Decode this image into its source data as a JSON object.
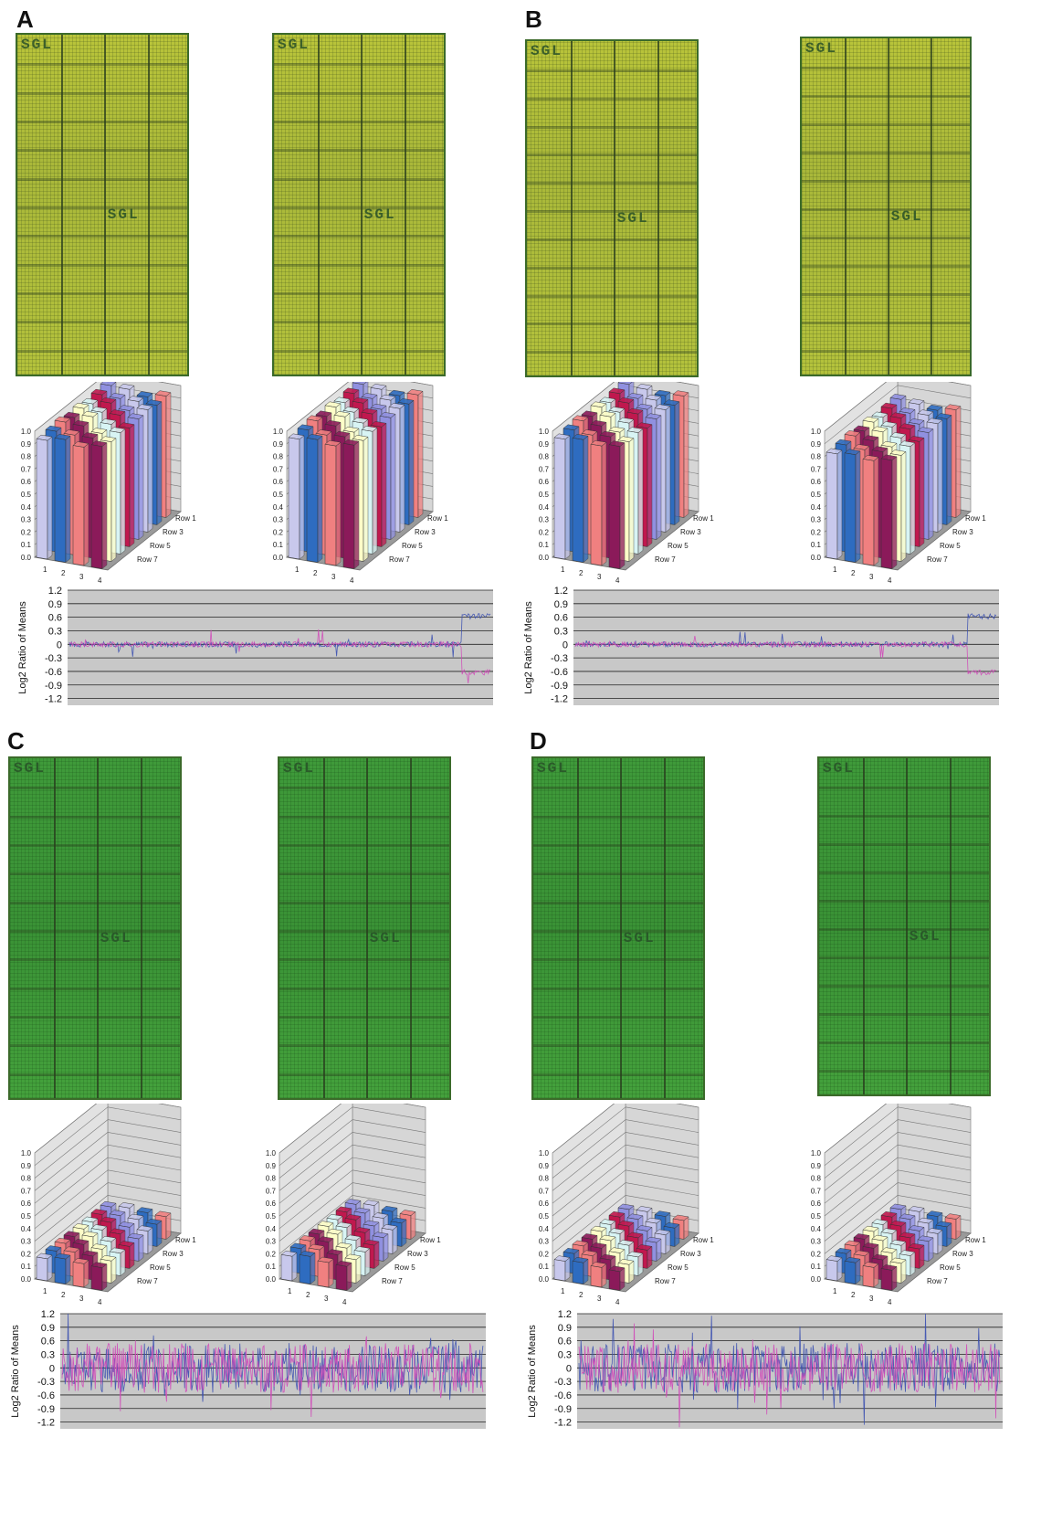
{
  "panels": [
    {
      "letter": "A",
      "theme": "yellow",
      "height": "high"
    },
    {
      "letter": "B",
      "theme": "yellow",
      "height": "high"
    },
    {
      "letter": "C",
      "theme": "green",
      "height": "low"
    },
    {
      "letter": "D",
      "theme": "green",
      "height": "low"
    }
  ],
  "array_logo": "SGL",
  "chart_data": [
    {
      "type": "bar",
      "panel": "A-left",
      "categories": [
        "1",
        "2",
        "3",
        "4"
      ],
      "rows": [
        "Row 1",
        "Row 3",
        "Row 5",
        "Row 7"
      ],
      "ylim": [
        0,
        1.0
      ],
      "yticks": [
        "1.0",
        "0.9",
        "0.8",
        "0.7",
        "0.6",
        "0.5",
        "0.4",
        "0.3",
        "0.2",
        "0.1",
        "0.0"
      ],
      "values": [
        0.97,
        0.98,
        0.96,
        0.97
      ]
    },
    {
      "type": "bar",
      "panel": "A-right",
      "categories": [
        "1",
        "2",
        "3",
        "4"
      ],
      "rows": [
        "Row 1",
        "Row 3",
        "Row 5",
        "Row 7"
      ],
      "ylim": [
        0,
        1.0
      ],
      "yticks": [
        "1.0",
        "0.9",
        "0.8",
        "0.7",
        "0.6",
        "0.5",
        "0.4",
        "0.3",
        "0.2",
        "0.1",
        "0.0"
      ],
      "values": [
        0.98,
        0.98,
        0.97,
        0.98
      ]
    },
    {
      "type": "bar",
      "panel": "B-left",
      "categories": [
        "1",
        "2",
        "3",
        "4"
      ],
      "rows": [
        "Row 1",
        "Row 3",
        "Row 5",
        "Row 7"
      ],
      "ylim": [
        0,
        1.0
      ],
      "yticks": [
        "1.0",
        "0.9",
        "0.8",
        "0.7",
        "0.6",
        "0.5",
        "0.4",
        "0.3",
        "0.2",
        "0.1",
        "0.0"
      ],
      "values": [
        0.98,
        0.98,
        0.97,
        0.97
      ]
    },
    {
      "type": "bar",
      "panel": "B-right",
      "categories": [
        "1",
        "2",
        "3",
        "4"
      ],
      "rows": [
        "Row 1",
        "Row 3",
        "Row 5",
        "Row 7"
      ],
      "ylim": [
        0,
        1.0
      ],
      "yticks": [
        "1.0",
        "0.9",
        "0.8",
        "0.7",
        "0.6",
        "0.5",
        "0.4",
        "0.3",
        "0.2",
        "0.1",
        "0.0"
      ],
      "values": [
        0.86,
        0.86,
        0.85,
        0.86
      ]
    },
    {
      "type": "bar",
      "panel": "C-left",
      "categories": [
        "1",
        "2",
        "3",
        "4"
      ],
      "rows": [
        "Row 1",
        "Row 3",
        "Row 5",
        "Row 7"
      ],
      "ylim": [
        0,
        1.0
      ],
      "yticks": [
        "1.0",
        "0.9",
        "0.8",
        "0.7",
        "0.6",
        "0.5",
        "0.4",
        "0.3",
        "0.2",
        "0.1",
        "0.0"
      ],
      "values": [
        0.18,
        0.2,
        0.19,
        0.18
      ]
    },
    {
      "type": "bar",
      "panel": "C-right",
      "categories": [
        "1",
        "2",
        "3",
        "4"
      ],
      "rows": [
        "Row 1",
        "Row 3",
        "Row 5",
        "Row 7"
      ],
      "ylim": [
        0,
        1.0
      ],
      "yticks": [
        "1.0",
        "0.9",
        "0.8",
        "0.7",
        "0.6",
        "0.5",
        "0.4",
        "0.3",
        "0.2",
        "0.1",
        "0.0"
      ],
      "values": [
        0.2,
        0.22,
        0.2,
        0.19
      ]
    },
    {
      "type": "bar",
      "panel": "D-left",
      "categories": [
        "1",
        "2",
        "3",
        "4"
      ],
      "rows": [
        "Row 1",
        "Row 3",
        "Row 5",
        "Row 7"
      ],
      "ylim": [
        0,
        1.0
      ],
      "yticks": [
        "1.0",
        "0.9",
        "0.8",
        "0.7",
        "0.6",
        "0.5",
        "0.4",
        "0.3",
        "0.2",
        "0.1",
        "0.0"
      ],
      "values": [
        0.16,
        0.17,
        0.16,
        0.15
      ]
    },
    {
      "type": "bar",
      "panel": "D-right",
      "categories": [
        "1",
        "2",
        "3",
        "4"
      ],
      "rows": [
        "Row 1",
        "Row 3",
        "Row 5",
        "Row 7"
      ],
      "ylim": [
        0,
        1.0
      ],
      "yticks": [
        "1.0",
        "0.9",
        "0.8",
        "0.7",
        "0.6",
        "0.5",
        "0.4",
        "0.3",
        "0.2",
        "0.1",
        "0.0"
      ],
      "values": [
        0.16,
        0.17,
        0.16,
        0.16
      ]
    },
    {
      "type": "scatter",
      "panel": "AB-log-ratio-A",
      "ylabel": "Log2 Ratio of Means",
      "ylim": [
        -1.35,
        1.2
      ],
      "yticks": [
        "1.2",
        "0.9",
        "0.6",
        "0.3",
        "0",
        "-0.3",
        "-0.6",
        "-0.9",
        "-1.2"
      ],
      "noise": "low",
      "series": [
        {
          "color": "#3a4fb0"
        },
        {
          "color": "#d048b8"
        }
      ]
    },
    {
      "type": "scatter",
      "panel": "AB-log-ratio-B",
      "ylabel": "Log2 Ratio of Means",
      "ylim": [
        -1.35,
        1.2
      ],
      "yticks": [
        "1.2",
        "0.9",
        "0.6",
        "0.3",
        "0",
        "-0.3",
        "-0.6",
        "-0.9",
        "-1.2"
      ],
      "noise": "low",
      "series": [
        {
          "color": "#3a4fb0"
        },
        {
          "color": "#d048b8"
        }
      ]
    },
    {
      "type": "scatter",
      "panel": "CD-log-ratio-C",
      "ylabel": "Log2 Ratio of Means",
      "ylim": [
        -1.35,
        1.2
      ],
      "yticks": [
        "1.2",
        "0.9",
        "0.6",
        "0.3",
        "0",
        "-0.3",
        "-0.6",
        "-0.9",
        "-1.2"
      ],
      "noise": "high",
      "series": [
        {
          "color": "#3a4fb0"
        },
        {
          "color": "#d048b8"
        }
      ]
    },
    {
      "type": "scatter",
      "panel": "CD-log-ratio-D",
      "ylabel": "Log2 Ratio of Means",
      "ylim": [
        -1.35,
        1.2
      ],
      "yticks": [
        "1.2",
        "0.9",
        "0.6",
        "0.3",
        "0",
        "-0.3",
        "-0.6",
        "-0.9",
        "-1.2"
      ],
      "noise": "high",
      "series": [
        {
          "color": "#3a4fb0"
        },
        {
          "color": "#d048b8"
        }
      ]
    }
  ],
  "bar_colors": [
    "#c8c8ec",
    "#2e6cc0",
    "#f08080",
    "#8b1a5a",
    "#fdfdc8",
    "#d8f4f4",
    "#c0184e",
    "#9090e0"
  ]
}
